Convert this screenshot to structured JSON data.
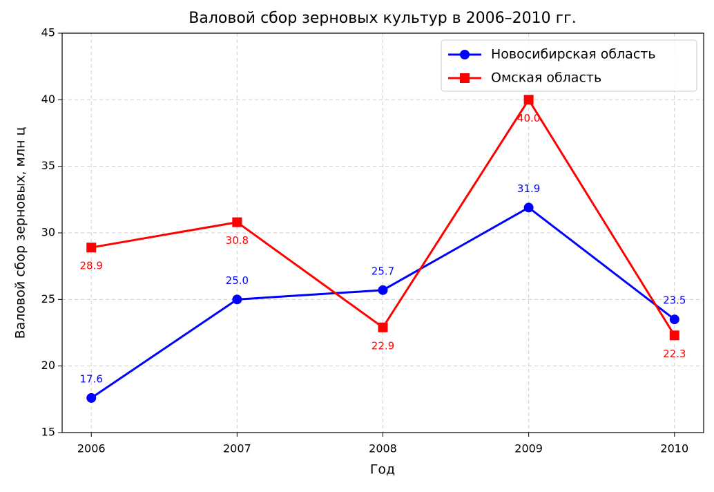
{
  "chart_data": {
    "type": "line",
    "title": "Валовой сбор зерновых культур в 2006–2010 гг.",
    "x_label": "Год",
    "y_label": "Валовой сбор зерновых, млн ц",
    "x": [
      2006,
      2007,
      2008,
      2009,
      2010
    ],
    "series": [
      {
        "name": "Новосибирская область",
        "color": "#0000ff",
        "marker": "circle",
        "values": [
          17.6,
          25.0,
          25.7,
          31.9,
          23.5
        ],
        "value_labels": [
          "17.6",
          "25.0",
          "25.7",
          "31.9",
          "23.5"
        ]
      },
      {
        "name": "Омская область",
        "color": "#ff0000",
        "marker": "square",
        "values": [
          28.9,
          30.8,
          22.9,
          40.0,
          22.3
        ],
        "value_labels": [
          "28.9",
          "30.8",
          "22.9",
          "40.0",
          "22.3"
        ]
      }
    ],
    "xlim": [
      2005.8,
      2010.2
    ],
    "xticks": [
      2006,
      2007,
      2008,
      2009,
      2010
    ],
    "ylim": [
      15,
      45
    ],
    "yticks": [
      15,
      20,
      25,
      30,
      35,
      40,
      45
    ],
    "grid": true,
    "legend": "upper right"
  }
}
